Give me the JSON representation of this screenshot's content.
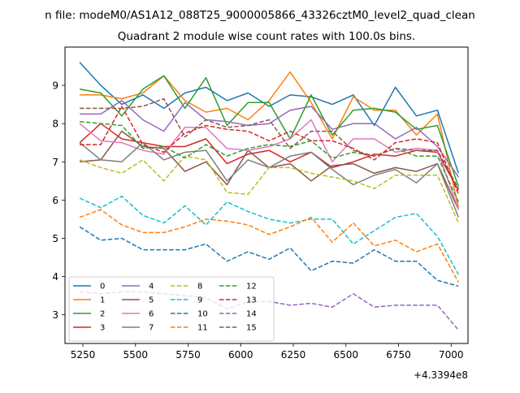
{
  "chart_data": {
    "type": "line",
    "suptitle": "n file: modeM0/AS1A12_088T25_9000005866_43326cztM0_level2_quad_clean",
    "title": "Quadrant 2 module wise count rates with 100.0s bins.",
    "xlabel": "",
    "ylabel": "",
    "x_offset_label": "+4.3394e8",
    "xlim": [
      5165,
      7080
    ],
    "ylim": [
      2.25,
      10.0
    ],
    "x_ticks": [
      5250,
      5500,
      5750,
      6000,
      6250,
      6500,
      6750,
      7000
    ],
    "y_ticks": [
      3,
      4,
      5,
      6,
      7,
      8,
      9
    ],
    "grid": false,
    "legend_position": "lower-left",
    "legend_columns": 4,
    "x": [
      5235,
      5335,
      5435,
      5535,
      5635,
      5735,
      5835,
      5935,
      6035,
      6135,
      6235,
      6335,
      6435,
      6535,
      6635,
      6735,
      6835,
      6935,
      7035
    ],
    "series": [
      {
        "name": "0",
        "color": "#1f77b4",
        "dash": false,
        "values": [
          9.6,
          9.0,
          8.5,
          8.75,
          8.4,
          8.8,
          8.95,
          8.6,
          8.8,
          8.45,
          8.75,
          8.7,
          8.5,
          8.75,
          7.95,
          8.95,
          8.2,
          8.35,
          6.7
        ]
      },
      {
        "name": "1",
        "color": "#ff7f0e",
        "dash": false,
        "values": [
          8.75,
          8.75,
          8.65,
          8.8,
          9.25,
          8.6,
          8.3,
          8.4,
          8.1,
          8.6,
          9.35,
          8.55,
          7.6,
          8.7,
          8.35,
          8.35,
          7.7,
          8.25,
          5.8
        ]
      },
      {
        "name": "2",
        "color": "#2ca02c",
        "dash": false,
        "values": [
          8.9,
          8.8,
          8.2,
          8.9,
          9.25,
          8.4,
          9.2,
          7.95,
          8.55,
          8.55,
          7.6,
          8.75,
          7.7,
          8.35,
          8.4,
          8.3,
          7.85,
          7.95,
          6.35
        ]
      },
      {
        "name": "3",
        "color": "#d62728",
        "dash": false,
        "values": [
          7.5,
          8.0,
          7.6,
          7.5,
          7.4,
          7.4,
          7.6,
          6.95,
          7.2,
          7.3,
          7.0,
          7.25,
          6.85,
          7.0,
          7.2,
          7.15,
          7.3,
          7.25,
          6.25
        ]
      },
      {
        "name": "4",
        "color": "#9467bd",
        "dash": false,
        "values": [
          8.25,
          8.25,
          8.6,
          8.1,
          7.8,
          8.55,
          8.1,
          8.05,
          7.95,
          8.0,
          8.35,
          8.45,
          7.85,
          8.0,
          8.0,
          7.6,
          7.9,
          7.4,
          6.6
        ]
      },
      {
        "name": "5",
        "color": "#8c564b",
        "dash": false,
        "values": [
          7.0,
          7.05,
          7.8,
          7.4,
          7.35,
          6.75,
          7.0,
          6.4,
          7.3,
          6.85,
          6.95,
          6.5,
          6.9,
          6.95,
          6.7,
          6.85,
          6.75,
          6.95,
          5.75
        ]
      },
      {
        "name": "6",
        "color": "#e377c2",
        "dash": false,
        "values": [
          8.0,
          7.55,
          7.5,
          7.3,
          7.2,
          7.9,
          7.9,
          7.35,
          7.3,
          7.4,
          7.6,
          8.1,
          7.0,
          7.6,
          7.6,
          7.25,
          7.35,
          7.3,
          5.75
        ]
      },
      {
        "name": "7",
        "color": "#7f7f7f",
        "dash": false,
        "values": [
          7.5,
          7.05,
          7.0,
          7.5,
          7.05,
          7.25,
          7.3,
          6.5,
          7.05,
          6.85,
          7.15,
          7.25,
          6.8,
          6.4,
          6.65,
          6.8,
          6.45,
          6.95,
          5.55
        ]
      },
      {
        "name": "8",
        "color": "#bcbd22",
        "dash": true,
        "values": [
          7.05,
          6.85,
          6.7,
          7.05,
          6.5,
          7.15,
          7.05,
          6.2,
          6.15,
          6.85,
          6.85,
          6.7,
          6.6,
          6.5,
          6.3,
          6.65,
          6.65,
          6.65,
          5.4
        ]
      },
      {
        "name": "9",
        "color": "#17becf",
        "dash": true,
        "values": [
          6.05,
          5.8,
          6.1,
          5.6,
          5.4,
          5.85,
          5.35,
          5.95,
          5.7,
          5.5,
          5.4,
          5.5,
          5.5,
          4.85,
          5.2,
          5.55,
          5.65,
          5.05,
          4.05
        ]
      },
      {
        "name": "10",
        "color": "#1f77b4",
        "dash": true,
        "values": [
          5.3,
          4.95,
          5.0,
          4.7,
          4.7,
          4.7,
          4.85,
          4.4,
          4.65,
          4.45,
          4.75,
          4.15,
          4.4,
          4.35,
          4.7,
          4.4,
          4.4,
          3.9,
          3.75
        ]
      },
      {
        "name": "11",
        "color": "#ff7f0e",
        "dash": true,
        "values": [
          5.55,
          5.75,
          5.35,
          5.15,
          5.15,
          5.3,
          5.5,
          5.45,
          5.35,
          5.1,
          5.3,
          5.55,
          4.9,
          5.4,
          4.8,
          4.95,
          4.65,
          4.85,
          3.85
        ]
      },
      {
        "name": "12",
        "color": "#2ca02c",
        "dash": true,
        "values": [
          8.05,
          8.0,
          7.95,
          7.35,
          7.4,
          7.1,
          7.45,
          7.15,
          7.35,
          7.45,
          7.4,
          7.55,
          7.1,
          7.25,
          7.15,
          7.35,
          7.15,
          7.15,
          5.95
        ]
      },
      {
        "name": "13",
        "color": "#d62728",
        "dash": true,
        "values": [
          7.45,
          7.45,
          8.45,
          7.45,
          7.25,
          7.75,
          7.95,
          7.85,
          7.8,
          7.55,
          7.8,
          7.55,
          7.55,
          7.35,
          7.05,
          7.5,
          7.6,
          7.5,
          6.15
        ]
      },
      {
        "name": "14",
        "color": "#9467bd",
        "dash": true,
        "values": [
          3.6,
          3.55,
          3.6,
          3.6,
          3.55,
          3.5,
          3.45,
          3.15,
          3.35,
          3.35,
          3.25,
          3.3,
          3.2,
          3.55,
          3.2,
          3.25,
          3.25,
          3.25,
          2.6
        ]
      },
      {
        "name": "15",
        "color": "#8c564b",
        "dash": true,
        "values": [
          8.4,
          8.4,
          8.4,
          8.45,
          8.65,
          7.65,
          8.1,
          7.9,
          7.95,
          8.1,
          7.35,
          7.8,
          7.8,
          7.3,
          7.15,
          7.35,
          7.3,
          7.3,
          6.3
        ]
      }
    ]
  }
}
